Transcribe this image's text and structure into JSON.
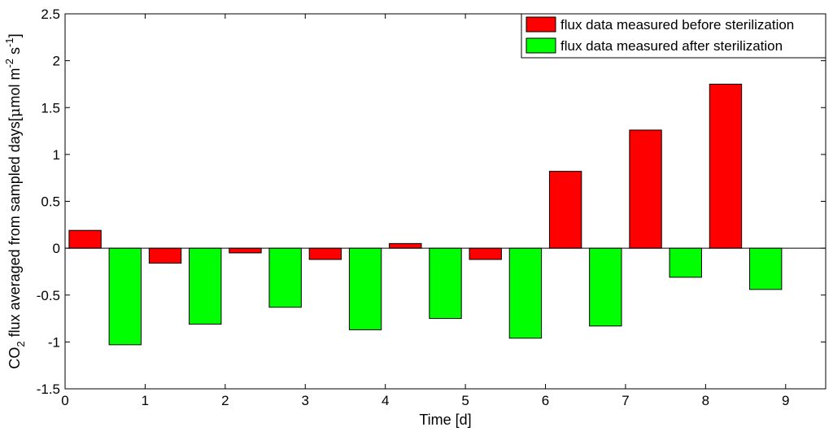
{
  "chart_data": {
    "type": "bar",
    "xlabel": "Time [d]",
    "ylabel_parts": {
      "co": "CO",
      "sub2": "2",
      "main": " flux averaged from sampled days[",
      "mu": "μ",
      "mol_m": "mol m",
      "sup_m2": "-2",
      "s": " s",
      "sup_s1": "-1",
      "close": "]"
    },
    "xlim": [
      0,
      9.5
    ],
    "ylim": [
      -1.5,
      2.5
    ],
    "xticks": [
      0,
      1,
      2,
      3,
      4,
      5,
      6,
      7,
      8,
      9
    ],
    "yticks": [
      -1.5,
      -1,
      -0.5,
      0,
      0.5,
      1,
      1.5,
      2,
      2.5
    ],
    "ytick_labels": [
      "-1.5",
      "-1",
      "-0.5",
      "0",
      "0.5",
      "1",
      "1.5",
      "2",
      "2.5"
    ],
    "bar_width": 0.4,
    "legend_position": "top-right",
    "grid": false,
    "series": [
      {
        "name": "flux data measured before sterilization",
        "color": "#ff0000",
        "x": [
          0.25,
          1.25,
          2.25,
          3.25,
          4.25,
          5.25,
          6.25,
          7.25,
          8.25
        ],
        "values": [
          0.19,
          -0.16,
          -0.05,
          -0.12,
          0.05,
          -0.12,
          0.82,
          1.26,
          1.75
        ]
      },
      {
        "name": "flux data measured after sterilization",
        "color": "#00ff00",
        "x": [
          0.75,
          1.75,
          2.75,
          3.75,
          4.75,
          5.75,
          6.75,
          7.75,
          8.75
        ],
        "values": [
          -1.03,
          -0.81,
          -0.63,
          -0.87,
          -0.75,
          -0.96,
          -0.83,
          -0.31,
          -0.44
        ]
      }
    ]
  }
}
